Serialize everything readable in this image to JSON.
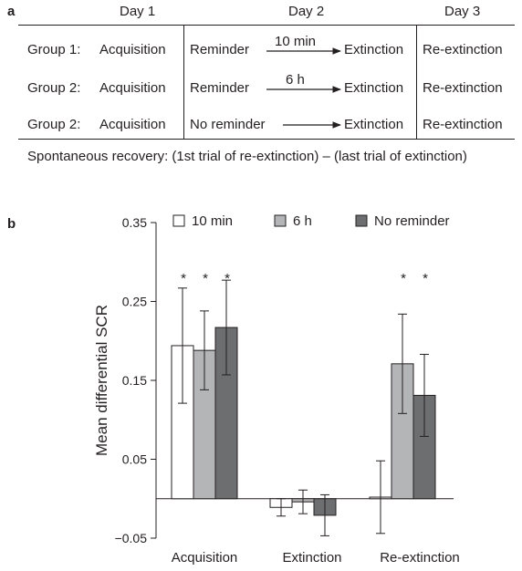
{
  "panel_a": {
    "letter": "a",
    "days": [
      "Day 1",
      "Day 2",
      "Day 3"
    ],
    "rows": [
      {
        "group": "Group 1:",
        "day1": "Acquisition",
        "day2": "Reminder",
        "interval": "10 min",
        "day2_end": "Extinction",
        "day3": "Re-extinction"
      },
      {
        "group": "Group 2:",
        "day1": "Acquisition",
        "day2": "Reminder",
        "interval": "6 h",
        "day2_end": "Extinction",
        "day3": "Re-extinction"
      },
      {
        "group": "Group 2:",
        "day1": "Acquisition",
        "day2": "No reminder",
        "interval": "",
        "day2_end": "Extinction",
        "day3": "Re-extinction"
      }
    ],
    "footnote": "Spontaneous recovery: (1st trial of re-extinction) – (last trial of extinction)"
  },
  "panel_b": {
    "letter": "b"
  },
  "chart_data": {
    "type": "bar",
    "ylabel": "Mean differential SCR",
    "xlabel": "",
    "categories": [
      "Acquisition",
      "Extinction",
      "Re-extinction"
    ],
    "ylim": [
      -0.05,
      0.35
    ],
    "yticks": [
      "0.35",
      "0.25",
      "0.15",
      "0.05",
      "−0.05"
    ],
    "ytick_values": [
      0.35,
      0.25,
      0.15,
      0.05,
      -0.05
    ],
    "legend_position": "top",
    "series": [
      {
        "name": "10 min",
        "color": "#ffffff",
        "values": [
          0.194,
          -0.011,
          0.002
        ],
        "errors": [
          0.073,
          0.011,
          0.046
        ],
        "significant": [
          true,
          false,
          false
        ]
      },
      {
        "name": "6 h",
        "color": "#b4b5b7",
        "values": [
          0.188,
          -0.004,
          0.171
        ],
        "errors": [
          0.05,
          0.015,
          0.063
        ],
        "significant": [
          true,
          false,
          true
        ]
      },
      {
        "name": "No reminder",
        "color": "#6d6e70",
        "values": [
          0.217,
          -0.021,
          0.131
        ],
        "errors": [
          0.06,
          0.026,
          0.052
        ],
        "significant": [
          true,
          false,
          true
        ]
      }
    ],
    "significance_marker": "*"
  }
}
